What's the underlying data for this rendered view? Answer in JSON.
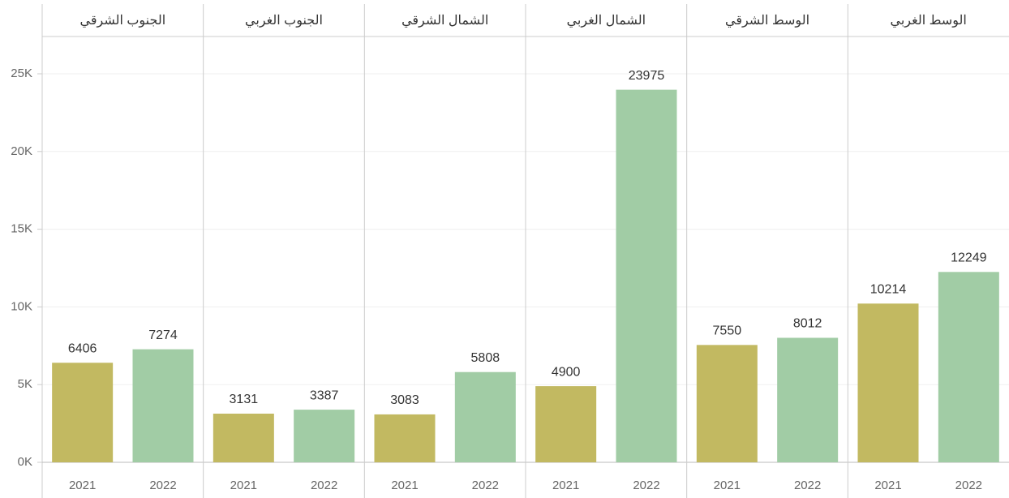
{
  "chart_data": {
    "type": "bar",
    "panels": [
      "الجنوب الشرقي",
      "الجنوب الغربي",
      "الشمال الشرقي",
      "الشمال الغربي",
      "الوسط الشرقي",
      "الوسط الغربي"
    ],
    "series": [
      {
        "name": "2021",
        "color": "#c2b961",
        "values": [
          6406,
          3131,
          3083,
          4900,
          7550,
          10214
        ]
      },
      {
        "name": "2022",
        "color": "#a1cca5",
        "values": [
          7274,
          3387,
          5808,
          23975,
          8012,
          12249
        ]
      }
    ],
    "ylim": [
      0,
      27400
    ],
    "yticks": [
      {
        "value": 0,
        "label": "0K"
      },
      {
        "value": 5000,
        "label": "5K"
      },
      {
        "value": 10000,
        "label": "10K"
      },
      {
        "value": 15000,
        "label": "15K"
      },
      {
        "value": 20000,
        "label": "20K"
      },
      {
        "value": 25000,
        "label": "25K"
      }
    ],
    "grid": true
  }
}
